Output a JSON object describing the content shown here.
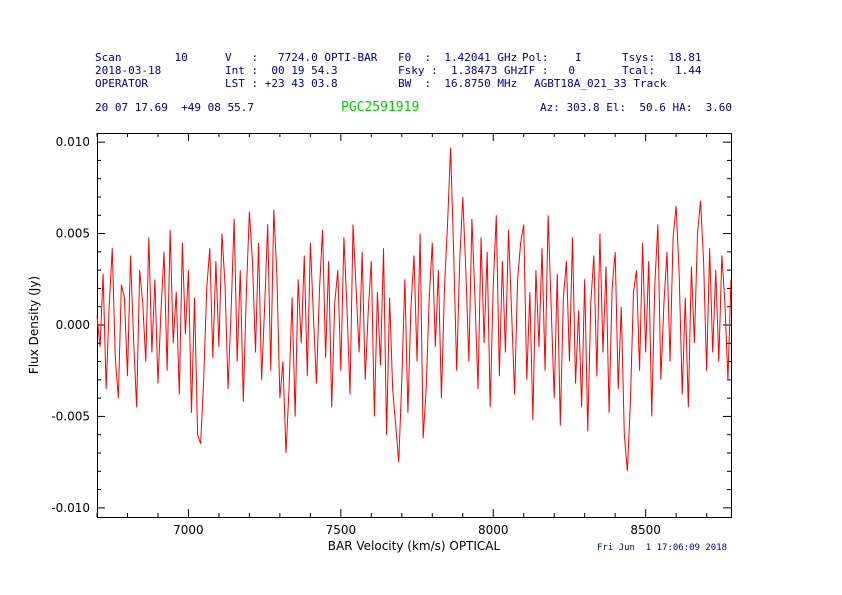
{
  "colors": {
    "header_text": "#00008B",
    "source_label": "#00CC00",
    "trace": "#FF0000",
    "axis": "#000000",
    "background": "#FFFFFF"
  },
  "header": {
    "scan": "Scan        10",
    "date": "2018-03-18",
    "operator": "OPERATOR",
    "velocity": "V   :   7724.0 OPTI-BAR",
    "integration": "Int :  00 19 54.3",
    "lst": "LST : +23 43 03.8",
    "f0": "F0  :  1.42041 GHz",
    "fsky": "Fsky :  1.38473 GHz",
    "bw": "BW  :  16.8750 MHz",
    "pol": "Pol:    I",
    "if": "IF :   0",
    "project": "AGBT18A_021_33 Track",
    "tsys": "Tsys:  18.81",
    "tcal": "Tcal:   1.44",
    "coords": "20 07 17.69  +49 08 55.7",
    "source": "PGC2591919",
    "azelha": "Az: 303.8 El:  50.6 HA:  3.60"
  },
  "footer": {
    "timestamp": "Fri Jun  1 17:06:09 2018"
  },
  "chart_data": {
    "type": "line",
    "title": "PGC2591919",
    "xlabel": "BAR Velocity (km/s) OPTICAL",
    "ylabel": "Flux Density (Jy)",
    "y_unit": "Jy",
    "xlim": [
      6700,
      8780
    ],
    "ylim": [
      -0.0105,
      0.0105
    ],
    "x_ticks": [
      7000,
      7500,
      8000,
      8500
    ],
    "x_tick_labels": [
      "7000",
      "7500",
      "8000",
      "8500"
    ],
    "y_ticks": [
      -0.01,
      -0.005,
      0.0,
      0.005,
      0.01
    ],
    "y_tick_labels": [
      "-0.010",
      "-0.005",
      "0.000",
      "0.005",
      "0.010"
    ],
    "x_minor_step": 100,
    "y_minor_step": 0.001,
    "grid": false,
    "legend": null,
    "line_color": "#FF0000",
    "x_start": 6700,
    "x_step": 10,
    "y_scale": 0.0001,
    "values": [
      5,
      -12,
      28,
      -35,
      10,
      42,
      -18,
      -40,
      22,
      15,
      -28,
      38,
      -8,
      -45,
      30,
      12,
      -20,
      48,
      -15,
      25,
      -32,
      8,
      40,
      -25,
      52,
      -10,
      18,
      -38,
      45,
      -5,
      30,
      -48,
      15,
      -60,
      -65,
      -30,
      20,
      42,
      -18,
      35,
      -12,
      50,
      22,
      -35,
      8,
      58,
      -20,
      30,
      -42,
      18,
      62,
      35,
      -15,
      45,
      -30,
      10,
      55,
      -25,
      63,
      28,
      -40,
      -20,
      -70,
      -35,
      15,
      -50,
      25,
      -10,
      38,
      -28,
      45,
      5,
      -32,
      20,
      52,
      -18,
      35,
      -45,
      12,
      30,
      -25,
      48,
      10,
      -38,
      55,
      20,
      -15,
      40,
      -30,
      8,
      35,
      -50,
      18,
      -22,
      42,
      -60,
      15,
      -35,
      -55,
      -75,
      -30,
      25,
      -48,
      10,
      38,
      -20,
      50,
      -62,
      -35,
      15,
      45,
      -12,
      30,
      -40,
      20,
      55,
      97,
      40,
      -25,
      35,
      70,
      30,
      -20,
      58,
      15,
      -35,
      48,
      -10,
      40,
      -45,
      22,
      60,
      -28,
      35,
      -15,
      52,
      8,
      -38,
      25,
      45,
      55,
      -30,
      18,
      -52,
      30,
      -12,
      42,
      -25,
      60,
      10,
      -40,
      28,
      -55,
      15,
      35,
      -20,
      48,
      -32,
      8,
      -45,
      25,
      -58,
      12,
      38,
      -28,
      50,
      -15,
      32,
      -48,
      20,
      40,
      -35,
      10,
      -60,
      -80,
      -42,
      18,
      30,
      -25,
      45,
      -15,
      35,
      -50,
      22,
      55,
      -30,
      12,
      40,
      -20,
      48,
      65,
      28,
      -38,
      15,
      -45,
      32,
      -10,
      50,
      68,
      35,
      -25,
      42,
      -15,
      30,
      -20,
      38,
      12,
      -30,
      25
    ]
  }
}
